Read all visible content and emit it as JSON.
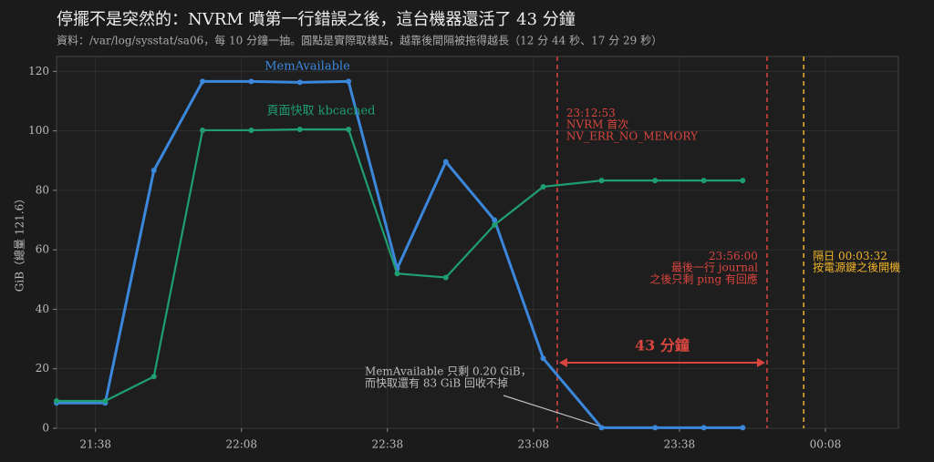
{
  "chart_data": {
    "type": "line",
    "title": "停擺不是突然的：NVRM 噴第一行錯誤之後，這台機器還活了 43 分鐘",
    "subtitle": "資料：/var/log/sysstat/sa06，每 10 分鐘一抽。圓點是實際取樣點，越靠後間隔被拖得越長（12 分 44 秒、17 分 29 秒）",
    "ylabel": "GiB（總量 121.6）",
    "x": [
      "21:30",
      "21:40",
      "21:50",
      "22:00",
      "22:10",
      "22:20",
      "22:30",
      "22:40",
      "22:50",
      "23:00",
      "23:10",
      "23:22",
      "23:33",
      "23:43",
      "23:51"
    ],
    "series": [
      {
        "name": "MemAvailable",
        "color": "#3b87dc",
        "values": [
          8.5,
          8.5,
          86.7,
          116.6,
          116.6,
          116.3,
          116.6,
          53.7,
          89.6,
          70,
          23.5,
          0.2,
          0.2,
          0.2,
          0.2
        ]
      },
      {
        "name": "頁面快取 kbcached",
        "color": "#1f9e72",
        "values": [
          9.2,
          9.2,
          17.4,
          100.2,
          100.2,
          100.5,
          100.5,
          52,
          50.7,
          68.4,
          81.2,
          83.3,
          83.3,
          83.3,
          83.3
        ]
      }
    ],
    "xlim": [
      "21:30",
      "00:23"
    ],
    "xticks": [
      "21:38",
      "22:08",
      "22:38",
      "23:08",
      "23:38",
      "00:08"
    ],
    "ylim": [
      0,
      125
    ],
    "yticks": [
      0,
      20,
      40,
      60,
      80,
      100,
      120
    ],
    "grid": true,
    "events": [
      {
        "x": "23:12:53",
        "color": "#d9453f",
        "lines": [
          "NVRM 首次",
          "NV_ERR_NO_MEMORY"
        ]
      },
      {
        "x": "23:56:00",
        "color": "#d9453f",
        "lines": [
          "最後一行 journal",
          "之後只剩 ping 有回應"
        ]
      },
      {
        "x": "00:03:32",
        "prefix": "隔日",
        "color": "#f0b429",
        "lines": [
          "按電源鍵之後開機"
        ]
      }
    ],
    "span_label": "43 分鐘",
    "note": [
      "MemAvailable 只剩 0.20 GiB，",
      "而快取還有 83 GiB 回收不掉"
    ]
  }
}
